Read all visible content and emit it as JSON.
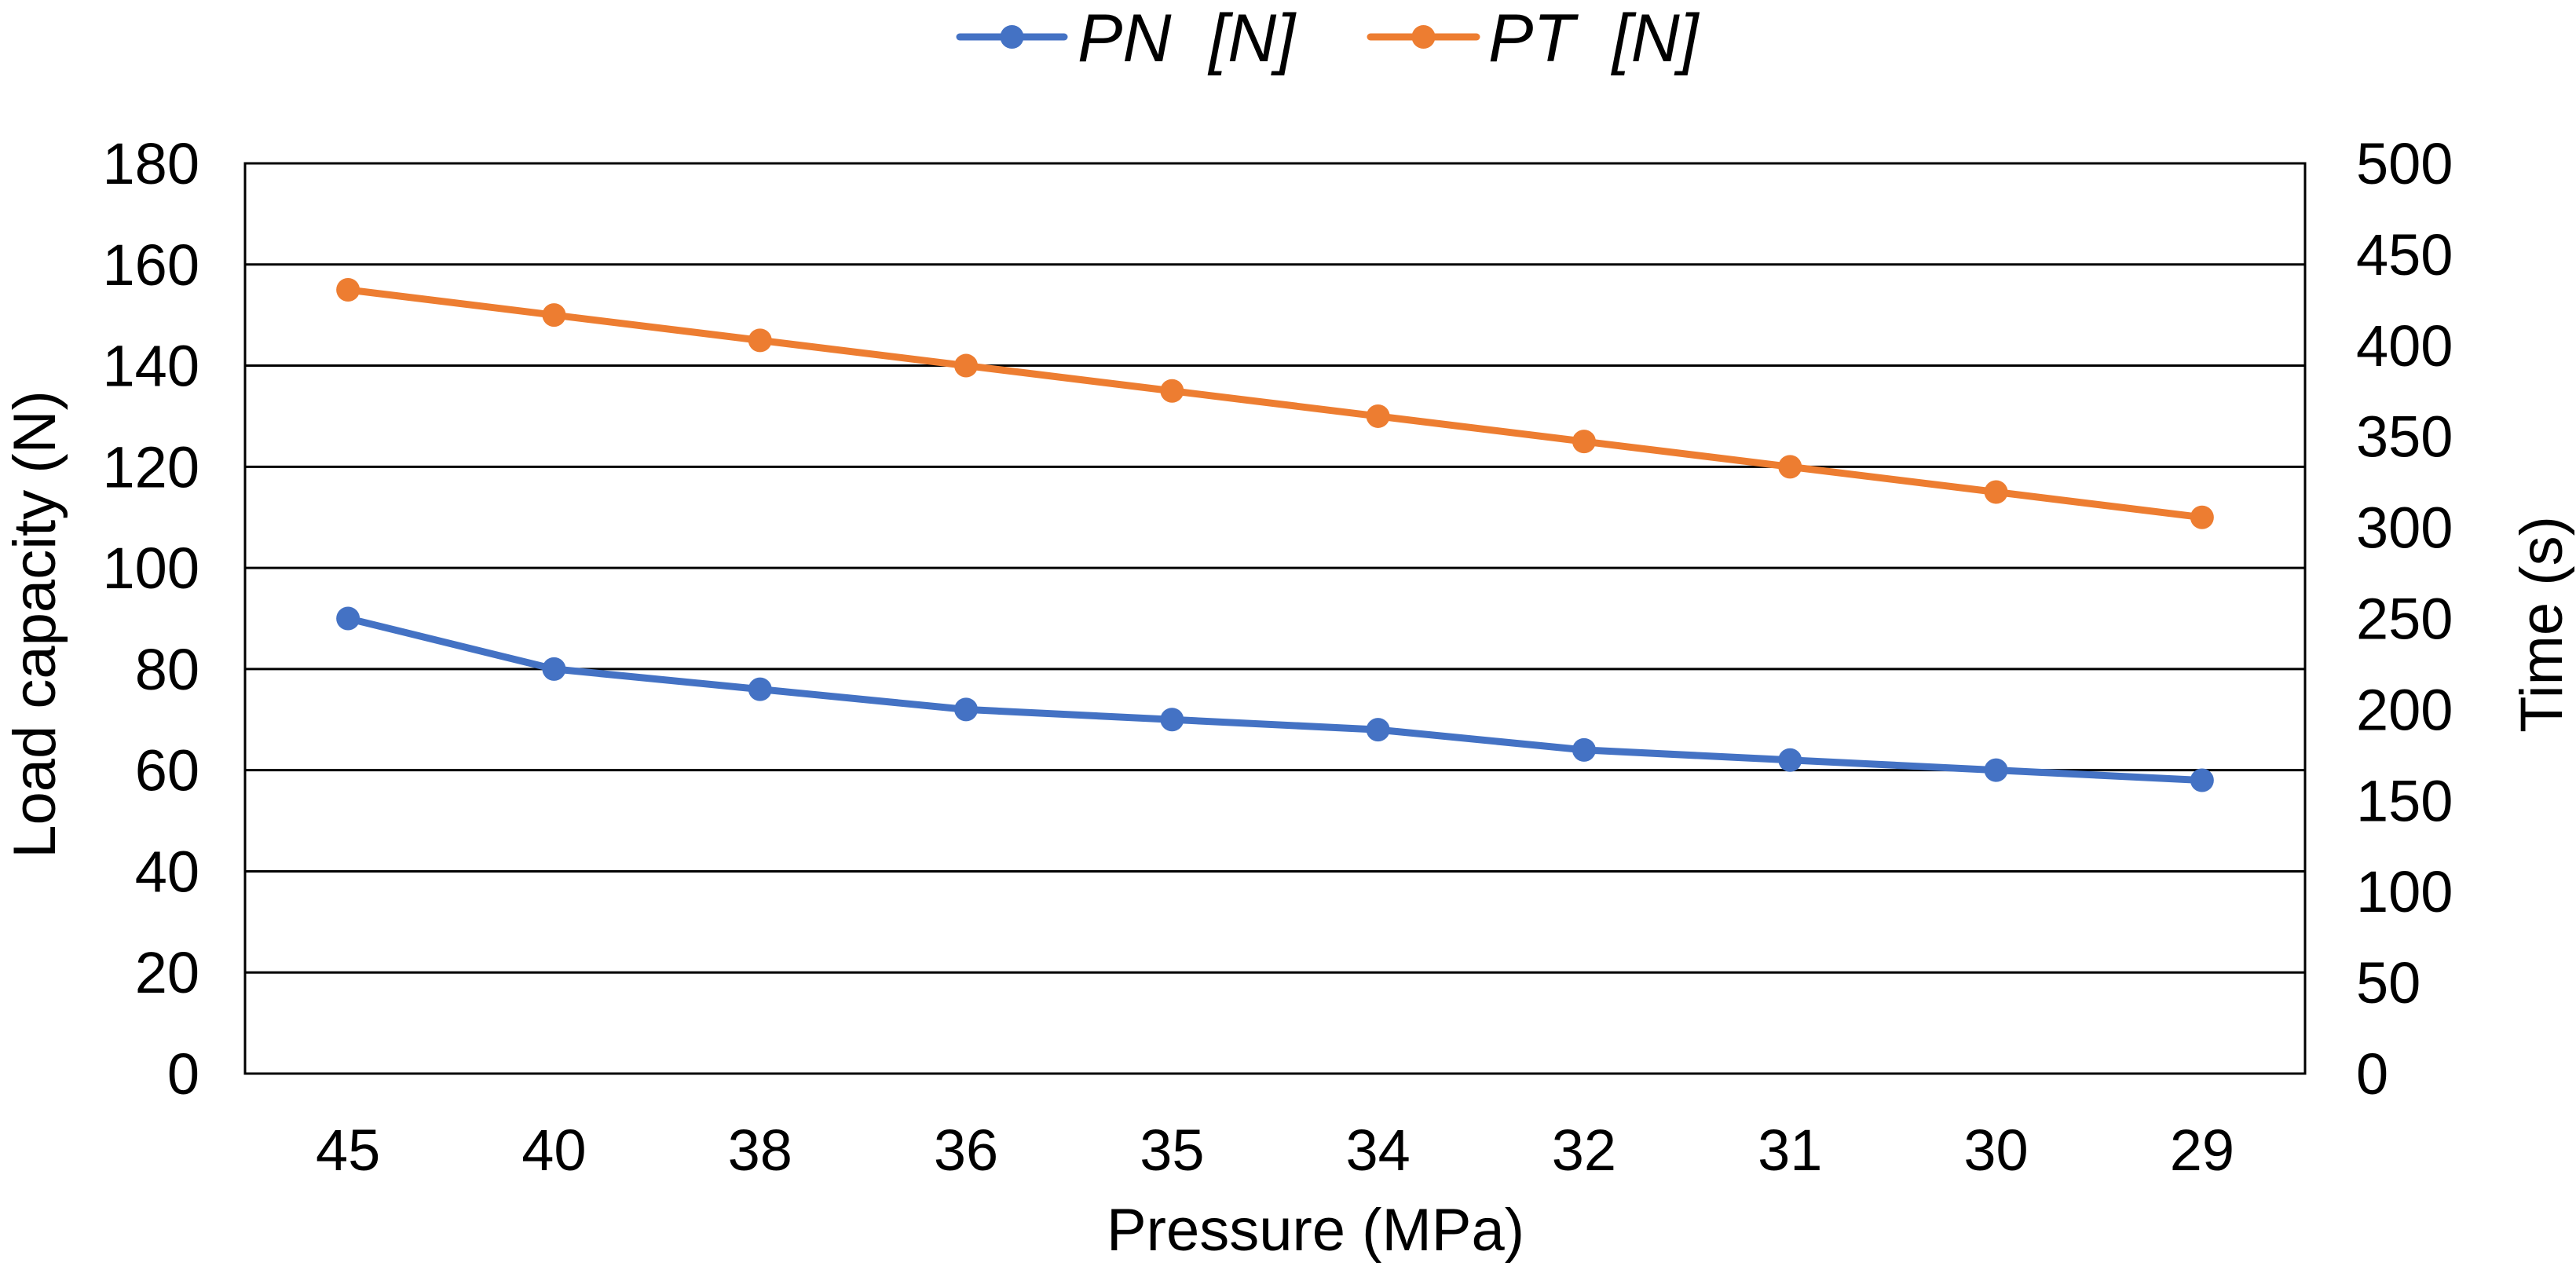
{
  "chart_data": {
    "type": "line",
    "title": "",
    "categories": [
      "45",
      "40",
      "38",
      "36",
      "35",
      "34",
      "32",
      "31",
      "30",
      "29"
    ],
    "xlabel": "Pressure (MPa)",
    "ylabel": "Load capacity (N)",
    "y2label": "Time (s)",
    "ylim": [
      0,
      180
    ],
    "y2lim": [
      0,
      500
    ],
    "yticks": [
      "0",
      "20",
      "40",
      "60",
      "80",
      "100",
      "120",
      "140",
      "160",
      "180"
    ],
    "y2ticks": [
      "0",
      "50",
      "100",
      "150",
      "200",
      "250",
      "300",
      "350",
      "400",
      "450",
      "500"
    ],
    "grid": true,
    "legend_position": "top-center",
    "series": [
      {
        "name": "PN  [N]",
        "color": "#4472C4",
        "values": [
          90,
          80,
          76,
          72,
          70,
          68,
          64,
          62,
          60,
          58
        ]
      },
      {
        "name": "PT  [N]",
        "color": "#ED7D31",
        "values": [
          155,
          150,
          145,
          140,
          135,
          130,
          125,
          120,
          115,
          110
        ]
      }
    ]
  }
}
